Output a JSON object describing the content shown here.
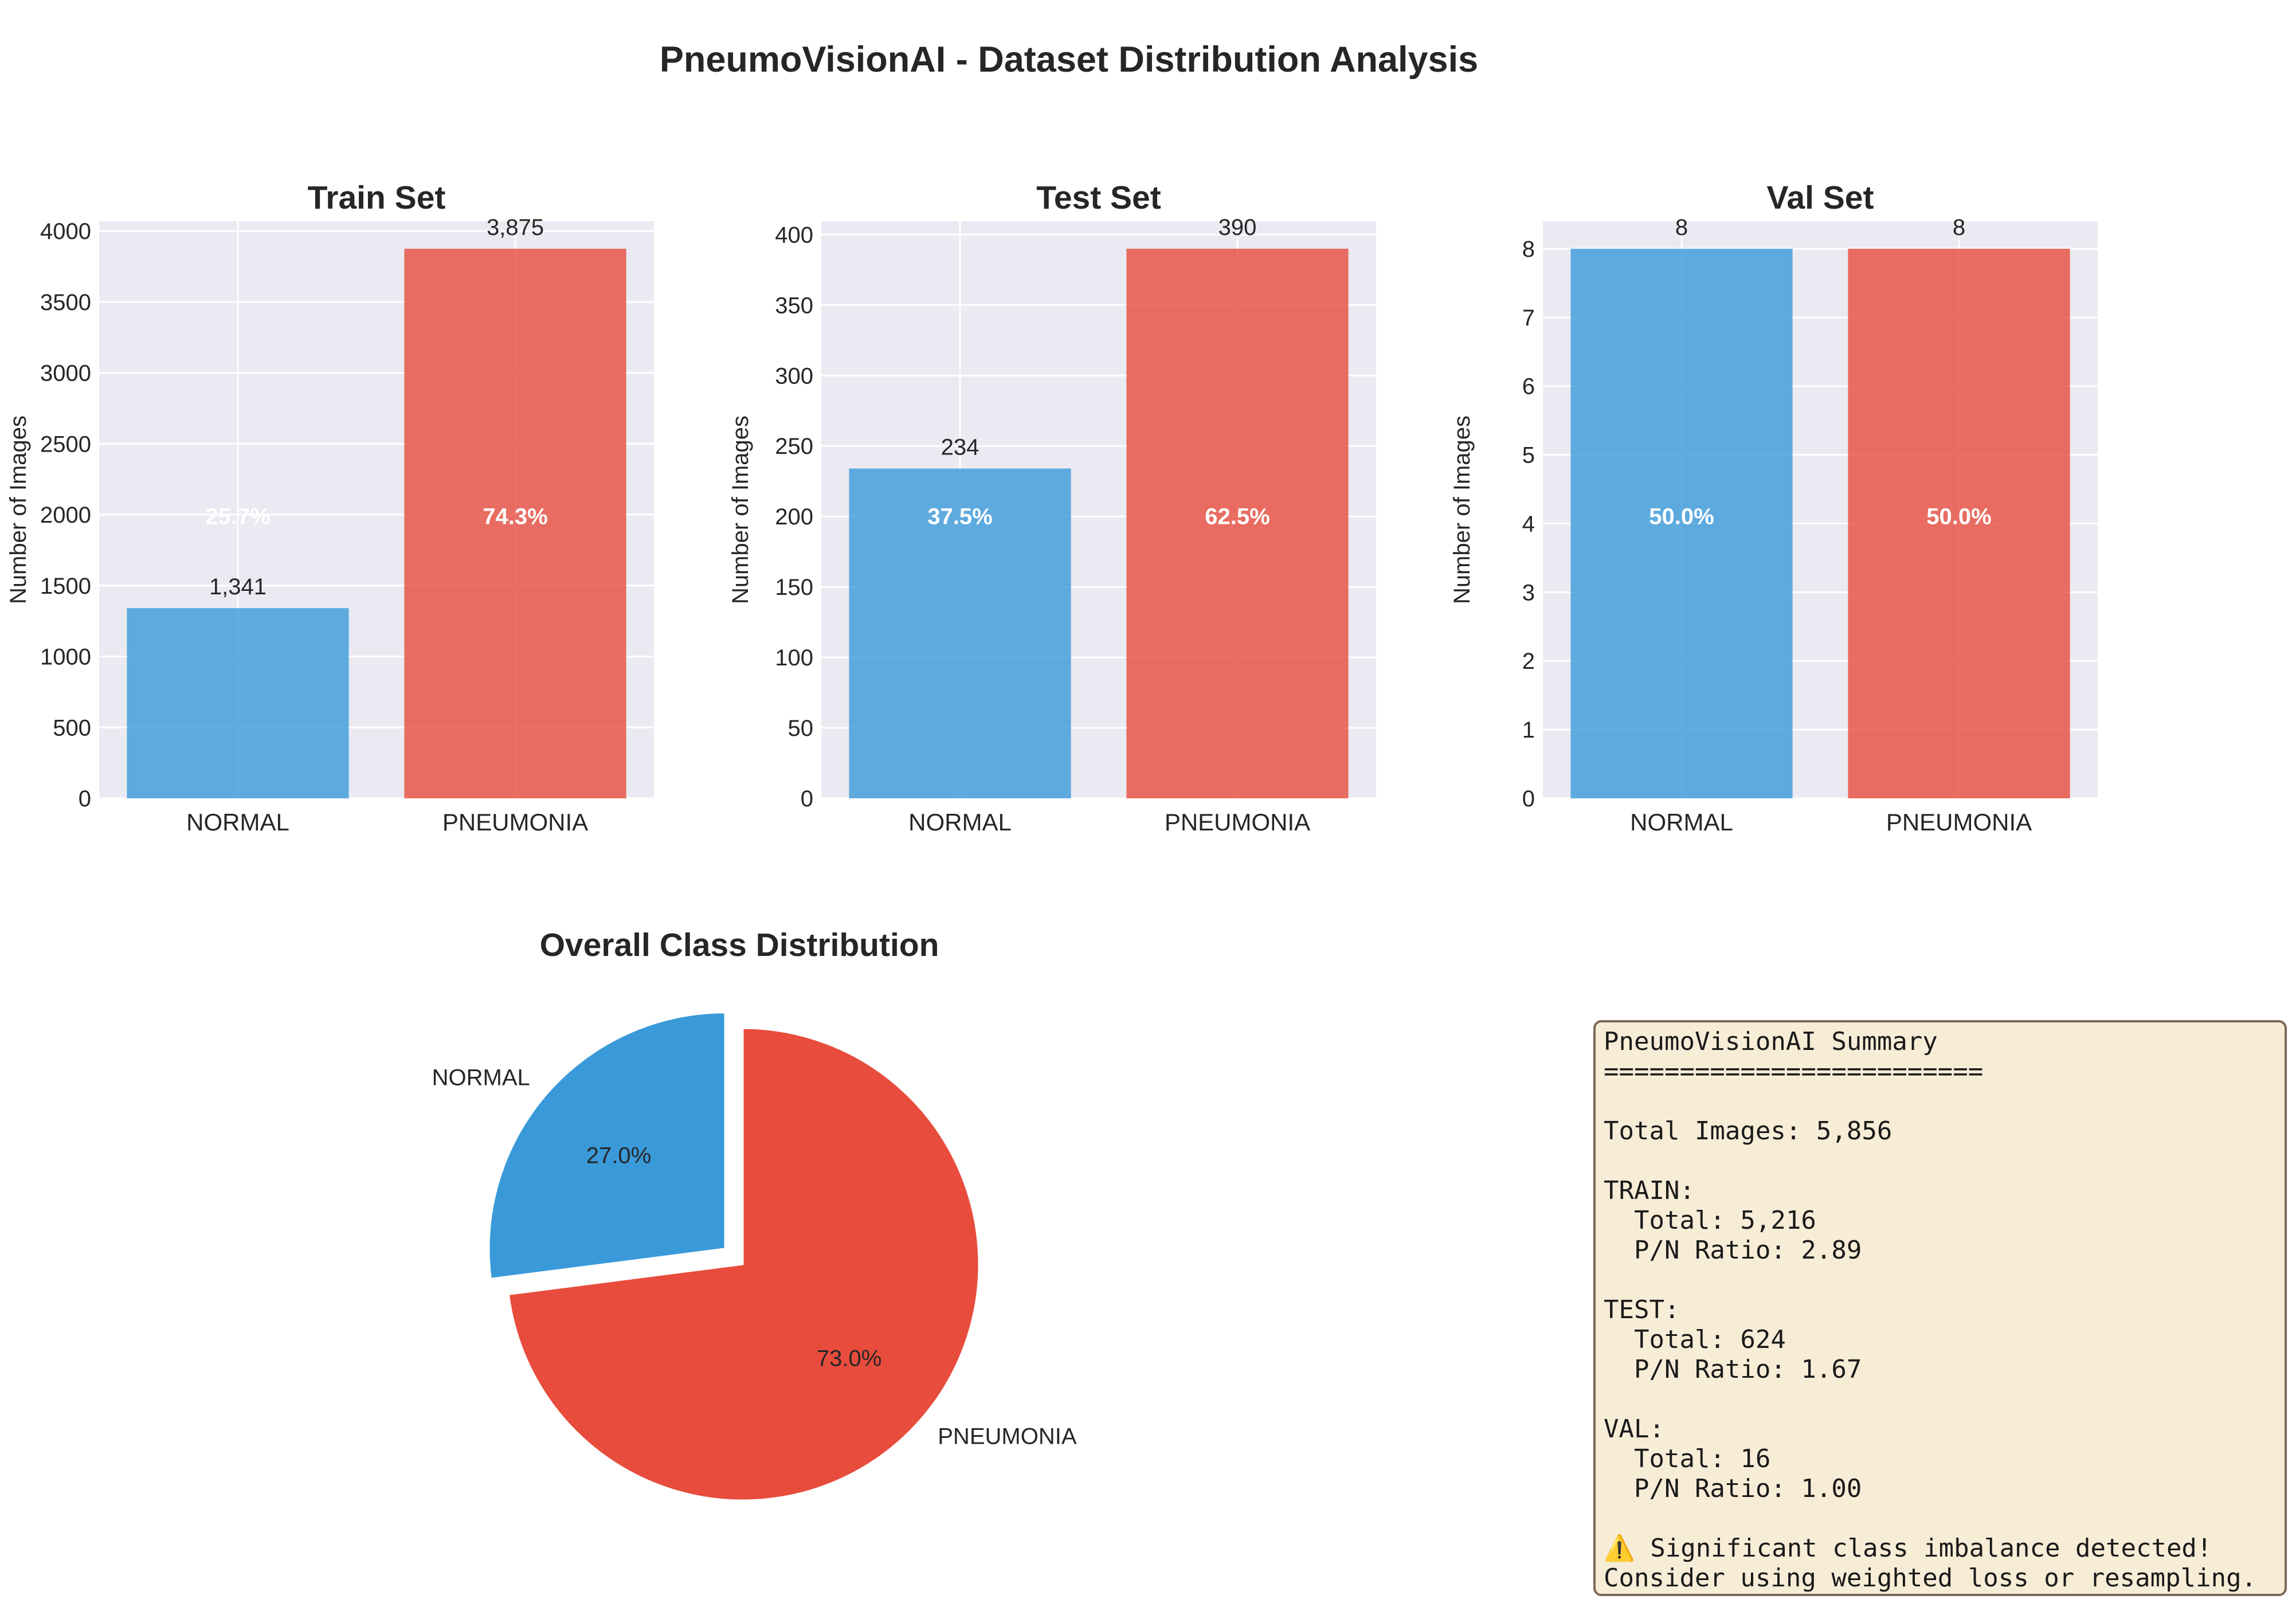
{
  "figure_title": "PneumoVisionAI - Dataset Distribution Analysis",
  "colors": {
    "normal": "#3a9ad9",
    "pneumonia": "#e74c3c",
    "panel_bg": "#eaeaf2",
    "grid": "#ffffff"
  },
  "chart_data": [
    {
      "type": "bar",
      "title": "Train Set",
      "ylabel": "Number of Images",
      "categories": [
        "NORMAL",
        "PNEUMONIA"
      ],
      "values": [
        1341,
        3875
      ],
      "value_labels": [
        "1,341",
        "3,875"
      ],
      "percent_labels": [
        "25.7%",
        "74.3%"
      ],
      "ylim": [
        0,
        4069
      ],
      "yticks": [
        0,
        500,
        1000,
        1500,
        2000,
        2500,
        3000,
        3500,
        4000
      ],
      "grid": true
    },
    {
      "type": "bar",
      "title": "Test Set",
      "ylabel": "Number of Images",
      "categories": [
        "NORMAL",
        "PNEUMONIA"
      ],
      "values": [
        234,
        390
      ],
      "value_labels": [
        "234",
        "390"
      ],
      "percent_labels": [
        "37.5%",
        "62.5%"
      ],
      "ylim": [
        0,
        409.5
      ],
      "yticks": [
        0,
        50,
        100,
        150,
        200,
        250,
        300,
        350,
        400
      ],
      "grid": true
    },
    {
      "type": "bar",
      "title": "Val Set",
      "ylabel": "Number of Images",
      "categories": [
        "NORMAL",
        "PNEUMONIA"
      ],
      "values": [
        8,
        8
      ],
      "value_labels": [
        "8",
        "8"
      ],
      "percent_labels": [
        "50.0%",
        "50.0%"
      ],
      "ylim": [
        0,
        8.4
      ],
      "yticks": [
        0,
        1,
        2,
        3,
        4,
        5,
        6,
        7,
        8
      ],
      "grid": true
    },
    {
      "type": "pie",
      "title": "Overall Class Distribution",
      "labels": [
        "NORMAL",
        "PNEUMONIA"
      ],
      "values": [
        1583,
        4273
      ],
      "percent_labels": [
        "27.0%",
        "73.0%"
      ],
      "explode": [
        0.1,
        0
      ],
      "start_angle_deg": 90
    }
  ],
  "summary": {
    "lines": [
      "PneumoVisionAI Summary",
      "=========================",
      "",
      "Total Images: 5,856",
      "",
      "TRAIN:",
      "  Total: 5,216",
      "  P/N Ratio: 2.89",
      "",
      "TEST:",
      "  Total: 624",
      "  P/N Ratio: 1.67",
      "",
      "VAL:",
      "  Total: 16",
      "  P/N Ratio: 1.00",
      "",
      "⚠️ Significant class imbalance detected!",
      "Consider using weighted loss or resampling."
    ]
  }
}
